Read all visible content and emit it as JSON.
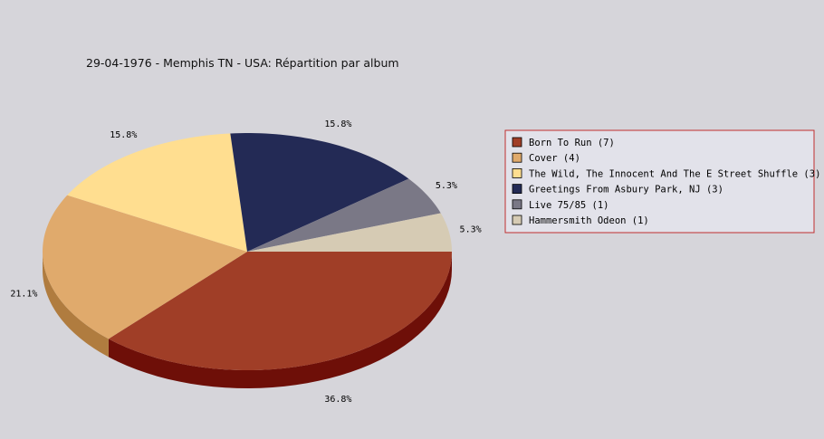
{
  "chart_data": {
    "type": "pie",
    "title": "29-04-1976 - Memphis TN - USA:  Répartition par album",
    "slices": [
      {
        "label": "Born To Run (7)",
        "value": 7,
        "percent_label": "36.8%",
        "color": "#a03e27",
        "side_color": "#6e0f08"
      },
      {
        "label": "Cover (4)",
        "value": 4,
        "percent_label": "21.1%",
        "color": "#e0aa6c",
        "side_color": "#b07c3f"
      },
      {
        "label": "The Wild, The Innocent And The E Street Shuffle (3)",
        "value": 3,
        "percent_label": "15.8%",
        "color": "#ffde90",
        "side_color": "#c9a85a"
      },
      {
        "label": "Greetings From Asbury Park, NJ (3)",
        "value": 3,
        "percent_label": "15.8%",
        "color": "#232a55",
        "side_color": "#11152e"
      },
      {
        "label": "Live 75/85 (1)",
        "value": 1,
        "percent_label": "5.3%",
        "color": "#7a7886",
        "side_color": "#4e4c58"
      },
      {
        "label": "Hammersmith Odeon  (1)",
        "value": 1,
        "percent_label": "5.3%",
        "color": "#d6cbb4",
        "side_color": "#a89c84"
      }
    ],
    "legend_position": "right"
  }
}
